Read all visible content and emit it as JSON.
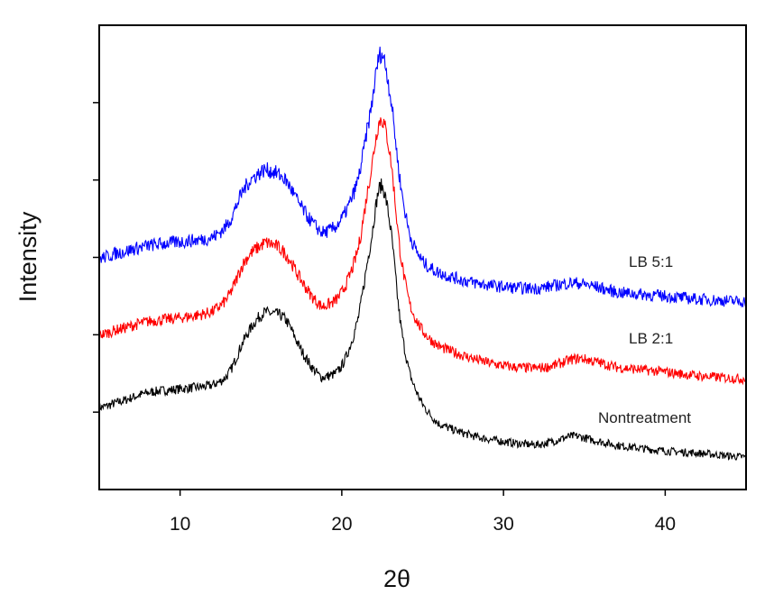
{
  "chart_data": {
    "type": "line",
    "title": "",
    "xlabel": "2θ",
    "ylabel": "Intensity",
    "xlim": [
      5,
      45
    ],
    "ylim": [
      0,
      6
    ],
    "xticks": [
      10,
      20,
      30,
      40
    ],
    "xtick_labels": [
      "10",
      "20",
      "30",
      "40"
    ],
    "yticks": [
      1,
      2,
      3,
      4,
      5
    ],
    "grid": false,
    "legend": "inline labels at right",
    "series": [
      {
        "name": "Nontreatment",
        "color": "#000000",
        "points": [
          [
            5,
            1.06
          ],
          [
            6,
            1.12
          ],
          [
            8,
            1.25
          ],
          [
            10,
            1.3
          ],
          [
            12,
            1.35
          ],
          [
            13,
            1.5
          ],
          [
            14,
            1.95
          ],
          [
            15,
            2.25
          ],
          [
            15.5,
            2.28
          ],
          [
            16.5,
            2.2
          ],
          [
            17.5,
            1.8
          ],
          [
            18.5,
            1.5
          ],
          [
            19,
            1.46
          ],
          [
            20,
            1.6
          ],
          [
            21,
            2.2
          ],
          [
            21.8,
            3.2
          ],
          [
            22.4,
            3.92
          ],
          [
            23,
            3.4
          ],
          [
            23.6,
            2.2
          ],
          [
            24.2,
            1.5
          ],
          [
            25,
            1.1
          ],
          [
            26,
            0.85
          ],
          [
            28,
            0.7
          ],
          [
            30,
            0.62
          ],
          [
            32,
            0.58
          ],
          [
            33,
            0.62
          ],
          [
            34.3,
            0.69
          ],
          [
            35.5,
            0.64
          ],
          [
            37,
            0.57
          ],
          [
            40,
            0.5
          ],
          [
            42,
            0.47
          ],
          [
            45,
            0.42
          ]
        ]
      },
      {
        "name": "LB 2:1",
        "color": "#ff0000",
        "points": [
          [
            5,
            2.0
          ],
          [
            6,
            2.06
          ],
          [
            8,
            2.17
          ],
          [
            10,
            2.22
          ],
          [
            12,
            2.3
          ],
          [
            13,
            2.5
          ],
          [
            14,
            2.95
          ],
          [
            15,
            3.15
          ],
          [
            15.5,
            3.18
          ],
          [
            16.5,
            3.05
          ],
          [
            17.5,
            2.7
          ],
          [
            18.5,
            2.42
          ],
          [
            19,
            2.38
          ],
          [
            20,
            2.55
          ],
          [
            21,
            3.1
          ],
          [
            21.8,
            4.1
          ],
          [
            22.4,
            4.78
          ],
          [
            23,
            4.3
          ],
          [
            23.6,
            3.1
          ],
          [
            24.2,
            2.4
          ],
          [
            25,
            2.05
          ],
          [
            26,
            1.85
          ],
          [
            28,
            1.7
          ],
          [
            30,
            1.6
          ],
          [
            32,
            1.57
          ],
          [
            33,
            1.6
          ],
          [
            34.5,
            1.69
          ],
          [
            35.5,
            1.66
          ],
          [
            37,
            1.58
          ],
          [
            40,
            1.52
          ],
          [
            42,
            1.47
          ],
          [
            45,
            1.43
          ]
        ]
      },
      {
        "name": "LB 5:1",
        "color": "#0000ff",
        "points": [
          [
            5,
            2.99
          ],
          [
            6,
            3.05
          ],
          [
            8,
            3.15
          ],
          [
            10,
            3.2
          ],
          [
            12,
            3.26
          ],
          [
            13,
            3.45
          ],
          [
            14,
            3.9
          ],
          [
            15,
            4.1
          ],
          [
            15.5,
            4.12
          ],
          [
            16.5,
            4.0
          ],
          [
            17.5,
            3.65
          ],
          [
            18.5,
            3.38
          ],
          [
            19,
            3.33
          ],
          [
            20,
            3.5
          ],
          [
            21,
            4.0
          ],
          [
            21.8,
            4.9
          ],
          [
            22.4,
            5.63
          ],
          [
            23,
            5.1
          ],
          [
            23.6,
            4.0
          ],
          [
            24.2,
            3.3
          ],
          [
            25,
            2.95
          ],
          [
            26,
            2.8
          ],
          [
            28,
            2.68
          ],
          [
            30,
            2.62
          ],
          [
            32,
            2.6
          ],
          [
            33,
            2.63
          ],
          [
            34.3,
            2.67
          ],
          [
            35.5,
            2.63
          ],
          [
            37,
            2.55
          ],
          [
            40,
            2.5
          ],
          [
            42,
            2.46
          ],
          [
            45,
            2.43
          ]
        ]
      }
    ]
  }
}
